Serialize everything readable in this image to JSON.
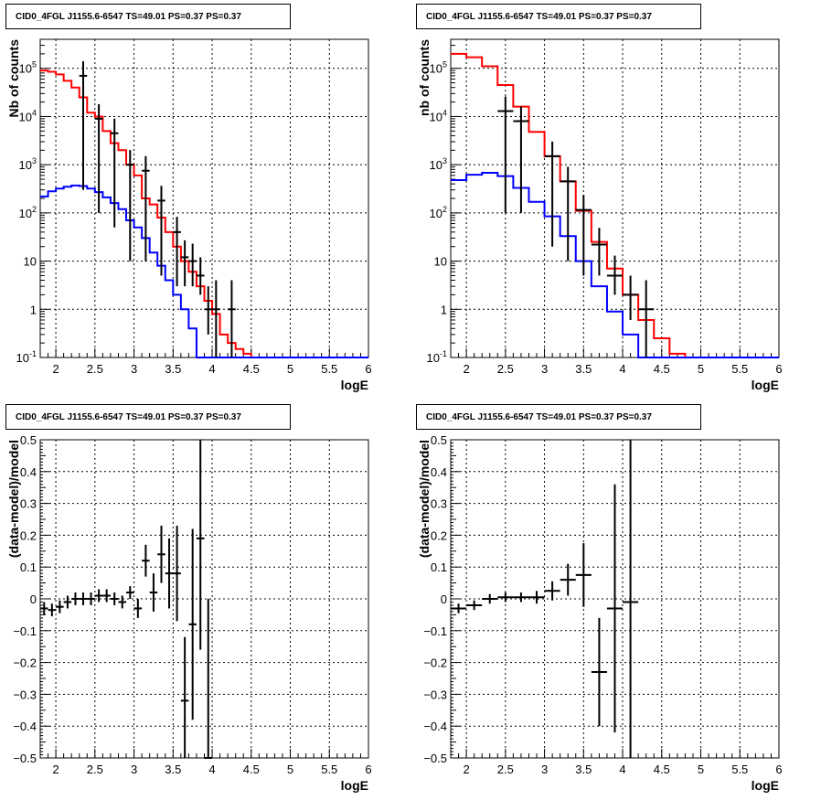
{
  "chart_data": [
    {
      "type": "line",
      "panel_title": "CID0_4FGL J1155.6-6547 TS=49.01 PS=0.37 PS=0.37",
      "xlabel": "logE",
      "ylabel": "Nb of counts",
      "xlim": [
        1.8,
        6.0
      ],
      "ylim": [
        0.1,
        400000
      ],
      "yscale": "log",
      "grid": true,
      "x_ticks": [
        "2",
        "2.5",
        "3",
        "3.5",
        "4",
        "4.5",
        "5",
        "5.5",
        "6"
      ],
      "y_ticks": [
        {
          "base": "10",
          "exp": "-1"
        },
        {
          "base": "1",
          "exp": ""
        },
        {
          "base": "10",
          "exp": ""
        },
        {
          "base": "10",
          "exp": "2"
        },
        {
          "base": "10",
          "exp": "3"
        },
        {
          "base": "10",
          "exp": "4"
        },
        {
          "base": "10",
          "exp": "5"
        }
      ],
      "series": [
        {
          "color": "#ff0000",
          "style": "step",
          "bin_width": 0.1,
          "x": [
            1.8,
            1.9,
            2.0,
            2.1,
            2.2,
            2.3,
            2.4,
            2.5,
            2.6,
            2.7,
            2.8,
            2.9,
            3.0,
            3.1,
            3.2,
            3.3,
            3.4,
            3.5,
            3.6,
            3.7,
            3.8,
            3.9,
            4.0,
            4.1,
            4.2,
            4.3,
            4.4,
            4.5,
            4.6,
            4.7,
            4.8,
            4.9,
            5.0,
            5.1,
            5.2,
            5.3,
            5.4,
            5.5,
            5.6,
            5.7,
            5.8,
            5.9
          ],
          "values": [
            90000,
            85000,
            75000,
            55000,
            40000,
            25000,
            12000,
            10000,
            5000,
            2800,
            2000,
            1000,
            600,
            200,
            150,
            80,
            40,
            20,
            10,
            6,
            3,
            1.5,
            0.8,
            0.3,
            0.2,
            0.15,
            0.12,
            0.1,
            0.1,
            0.1,
            0.1,
            0.1,
            0.1,
            0.1,
            0.1,
            0.1,
            0.1,
            0.1,
            0.1,
            0.1,
            0.1,
            0.1
          ]
        },
        {
          "color": "#0000ff",
          "style": "step",
          "bin_width": 0.1,
          "x": [
            1.8,
            1.9,
            2.0,
            2.1,
            2.2,
            2.3,
            2.4,
            2.5,
            2.6,
            2.7,
            2.8,
            2.9,
            3.0,
            3.1,
            3.2,
            3.3,
            3.4,
            3.5,
            3.6,
            3.7,
            3.8,
            3.9,
            4.0,
            4.1,
            4.2,
            4.3,
            4.4,
            4.5,
            4.6,
            4.7,
            4.8,
            4.9,
            5.0,
            5.1,
            5.2,
            5.3,
            5.4,
            5.5,
            5.6,
            5.7,
            5.8,
            5.9
          ],
          "values": [
            220,
            280,
            320,
            350,
            370,
            360,
            320,
            270,
            210,
            160,
            120,
            70,
            50,
            30,
            15,
            8,
            4,
            2,
            1,
            0.4,
            0.1,
            0.1,
            0.1,
            0.1,
            0.1,
            0.1,
            0.1,
            0.1,
            0.1,
            0.1,
            0.1,
            0.1,
            0.1,
            0.1,
            0.1,
            0.1,
            0.1,
            0.1,
            0.1,
            0.1,
            0.1,
            0.1
          ]
        },
        {
          "color": "#000000",
          "style": "errorbar",
          "xerr": 0.05,
          "x": [
            2.35,
            2.55,
            2.75,
            2.95,
            3.15,
            3.35,
            3.55,
            3.65,
            3.75,
            3.85,
            3.95,
            4.05,
            4.25
          ],
          "values": [
            70000,
            9000,
            4500,
            1000,
            750,
            180,
            40,
            12,
            10,
            5,
            1,
            1,
            1
          ],
          "yerr_low": [
            69700,
            8900,
            4450,
            990,
            740,
            175,
            37,
            9,
            7,
            3,
            0.7,
            0.9,
            0.9
          ],
          "yerr_high": [
            70300,
            9100,
            4550,
            1010,
            760,
            185,
            43,
            15,
            13,
            7,
            2,
            3,
            3
          ]
        }
      ]
    },
    {
      "type": "line",
      "panel_title": "CID0_4FGL J1155.6-6547 TS=49.01 PS=0.37 PS=0.37",
      "xlabel": "logE",
      "ylabel": "nb of counts",
      "xlim": [
        1.8,
        6.0
      ],
      "ylim": [
        0.1,
        400000
      ],
      "yscale": "log",
      "grid": true,
      "x_ticks": [
        "2",
        "2.5",
        "3",
        "3.5",
        "4",
        "4.5",
        "5",
        "5.5",
        "6"
      ],
      "y_ticks": [
        {
          "base": "10",
          "exp": "-1"
        },
        {
          "base": "1",
          "exp": ""
        },
        {
          "base": "10",
          "exp": ""
        },
        {
          "base": "10",
          "exp": "2"
        },
        {
          "base": "10",
          "exp": "3"
        },
        {
          "base": "10",
          "exp": "4"
        },
        {
          "base": "10",
          "exp": "5"
        }
      ],
      "series": [
        {
          "color": "#ff0000",
          "style": "step",
          "bin_width": 0.2,
          "x": [
            1.8,
            2.0,
            2.2,
            2.4,
            2.6,
            2.8,
            3.0,
            3.2,
            3.4,
            3.6,
            3.8,
            4.0,
            4.2,
            4.4,
            4.6,
            4.8,
            5.0,
            5.2,
            5.4,
            5.6,
            5.8
          ],
          "values": [
            200000,
            170000,
            110000,
            45000,
            16000,
            4800,
            1500,
            450,
            110,
            25,
            7,
            2,
            0.6,
            0.25,
            0.12,
            0.1,
            0.1,
            0.1,
            0.1,
            0.1,
            0.1
          ]
        },
        {
          "color": "#0000ff",
          "style": "step",
          "bin_width": 0.2,
          "x": [
            1.8,
            2.0,
            2.2,
            2.4,
            2.6,
            2.8,
            3.0,
            3.2,
            3.4,
            3.6,
            3.8,
            4.0,
            4.2,
            4.4,
            4.6,
            4.8,
            5.0,
            5.2,
            5.4,
            5.6,
            5.8
          ],
          "values": [
            480,
            620,
            680,
            580,
            330,
            170,
            85,
            33,
            10,
            3,
            0.9,
            0.3,
            0.1,
            0.1,
            0.1,
            0.1,
            0.1,
            0.1,
            0.1,
            0.1,
            0.1
          ]
        },
        {
          "color": "#000000",
          "style": "errorbar",
          "xerr": 0.1,
          "x": [
            2.5,
            2.7,
            3.1,
            3.3,
            3.5,
            3.7,
            3.9,
            4.1,
            4.3
          ],
          "values": [
            13000,
            8000,
            1500,
            450,
            115,
            22,
            5,
            2,
            1
          ],
          "yerr_low": [
            12900,
            7900,
            1480,
            440,
            110,
            17,
            3,
            1.4,
            0.9
          ],
          "yerr_high": [
            13100,
            8100,
            1520,
            460,
            120,
            27,
            8,
            3,
            3
          ]
        }
      ]
    },
    {
      "type": "scatter",
      "panel_title": "CID0_4FGL J1155.6-6547 TS=49.01 PS=0.37 PS=0.37",
      "xlabel": "logE",
      "ylabel": "(data-model)/model",
      "xlim": [
        1.8,
        6.0
      ],
      "ylim": [
        -0.5,
        0.5
      ],
      "grid": true,
      "x_ticks": [
        "2",
        "2.5",
        "3",
        "3.5",
        "4",
        "4.5",
        "5",
        "5.5",
        "6"
      ],
      "y_ticks": [
        "−0.5",
        "−0.4",
        "−0.3",
        "−0.2",
        "−0.1",
        "0",
        "0.1",
        "0.2",
        "0.3",
        "0.4",
        "0.5"
      ],
      "series": [
        {
          "color": "#000000",
          "style": "errorbar",
          "xerr": 0.05,
          "x": [
            1.85,
            1.95,
            2.05,
            2.15,
            2.25,
            2.35,
            2.45,
            2.55,
            2.65,
            2.75,
            2.85,
            2.95,
            3.05,
            3.15,
            3.25,
            3.35,
            3.45,
            3.55,
            3.65,
            3.75,
            3.85,
            3.95
          ],
          "values": [
            -0.03,
            -0.035,
            -0.025,
            -0.01,
            0.0,
            0.0,
            0.0,
            0.01,
            0.01,
            0.0,
            -0.01,
            0.02,
            -0.03,
            0.12,
            0.02,
            0.14,
            0.08,
            0.08,
            -0.32,
            -0.08,
            0.19,
            -0.5
          ],
          "yerr": [
            0.02,
            0.02,
            0.02,
            0.02,
            0.02,
            0.02,
            0.02,
            0.02,
            0.02,
            0.02,
            0.02,
            0.02,
            0.03,
            0.05,
            0.06,
            0.09,
            0.11,
            0.15,
            0.2,
            0.3,
            0.35,
            0.5
          ]
        }
      ]
    },
    {
      "type": "scatter",
      "panel_title": "CID0_4FGL J1155.6-6547 TS=49.01 PS=0.37 PS=0.37",
      "xlabel": "logE",
      "ylabel": "(data-model)/model",
      "xlim": [
        1.8,
        6.0
      ],
      "ylim": [
        -0.5,
        0.5
      ],
      "grid": true,
      "x_ticks": [
        "2",
        "2.5",
        "3",
        "3.5",
        "4",
        "4.5",
        "5",
        "5.5",
        "6"
      ],
      "y_ticks": [
        "−0.5",
        "−0.4",
        "−0.3",
        "−0.2",
        "−0.1",
        "0",
        "0.1",
        "0.2",
        "0.3",
        "0.4",
        "0.5"
      ],
      "series": [
        {
          "color": "#000000",
          "style": "errorbar",
          "xerr": 0.1,
          "x": [
            1.9,
            2.1,
            2.3,
            2.5,
            2.7,
            2.9,
            3.1,
            3.3,
            3.5,
            3.7,
            3.9,
            4.1
          ],
          "values": [
            -0.03,
            -0.02,
            0.0,
            0.005,
            0.005,
            0.005,
            0.025,
            0.06,
            0.075,
            -0.23,
            -0.03,
            -0.01
          ],
          "yerr": [
            0.015,
            0.015,
            0.015,
            0.015,
            0.015,
            0.02,
            0.03,
            0.05,
            0.1,
            0.17,
            0.39,
            0.55
          ]
        }
      ]
    }
  ]
}
